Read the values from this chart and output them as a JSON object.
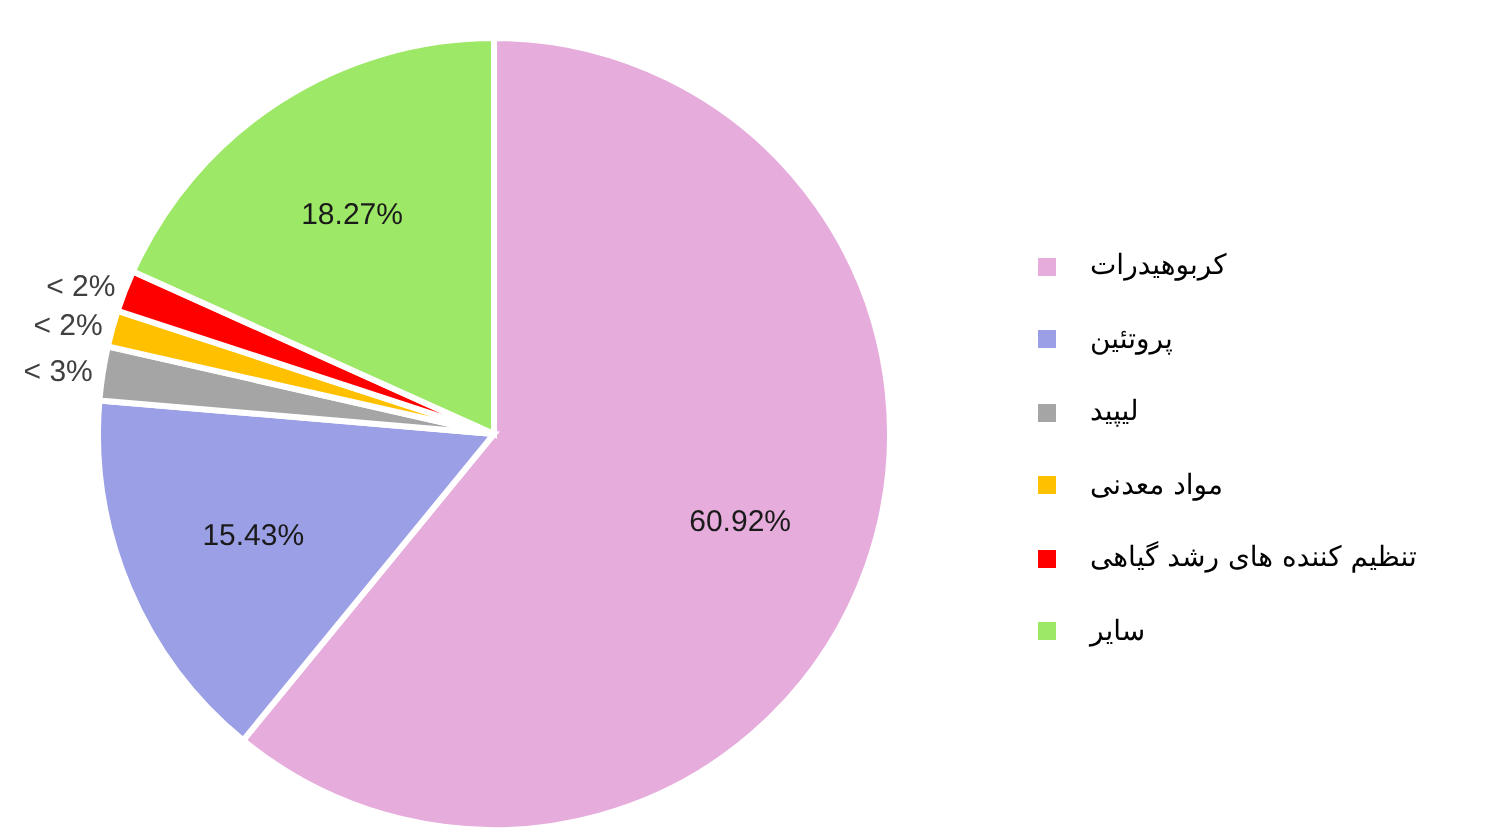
{
  "chart_data": {
    "type": "pie",
    "categories": [
      "کربوهیدرات",
      "پروتئین",
      "لیپید",
      "مواد معدنی",
      "تنظیم کننده های رشد گیاهی",
      "سایر"
    ],
    "values": [
      60.92,
      15.43,
      2.2,
      1.48,
      1.7,
      18.27
    ],
    "colors": [
      "#e6acdc",
      "#9b9fe5",
      "#a5a5a5",
      "#ffc000",
      "#ff0000",
      "#9de866"
    ],
    "value_labels": [
      "60.92%",
      "15.43%",
      "< 3%",
      "< 2%",
      "< 2%",
      "18.27%"
    ],
    "legend": "right"
  }
}
